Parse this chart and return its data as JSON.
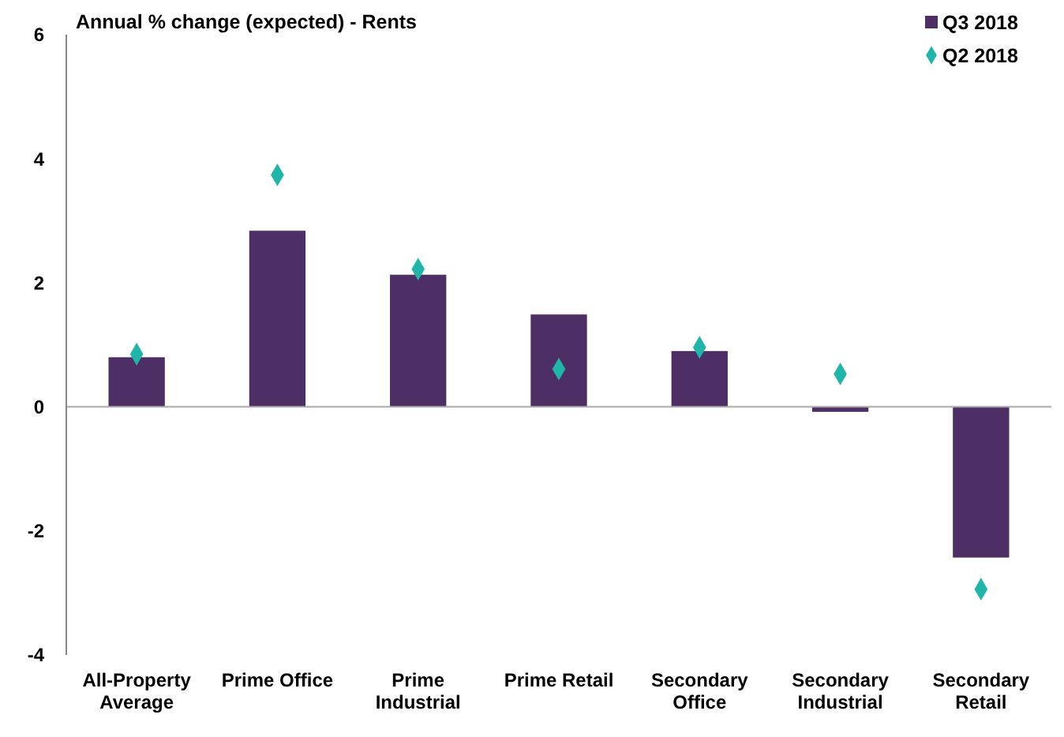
{
  "chart_data": {
    "type": "bar",
    "title": "Annual % change (expected) - Rents",
    "categories": [
      "All-Property Average",
      "Prime Office",
      "Prime Industrial",
      "Prime Retail",
      "Secondary Office",
      "Secondary Industrial",
      "Secondary Retail"
    ],
    "series": [
      {
        "name": "Q3 2018",
        "color": "#4d2f66",
        "values": [
          0.8,
          2.84,
          2.13,
          1.49,
          0.9,
          -0.08,
          -2.43
        ]
      },
      {
        "name": "Q2 2018",
        "type": "scatter",
        "color": "#1fb5a8",
        "values": [
          0.85,
          3.74,
          2.22,
          0.61,
          0.96,
          0.53,
          -2.94
        ]
      }
    ],
    "ylim": [
      -4,
      6
    ],
    "yticks": [
      -4,
      -2,
      0,
      2,
      4,
      6
    ],
    "legend": "top right",
    "marker": "diamond"
  }
}
